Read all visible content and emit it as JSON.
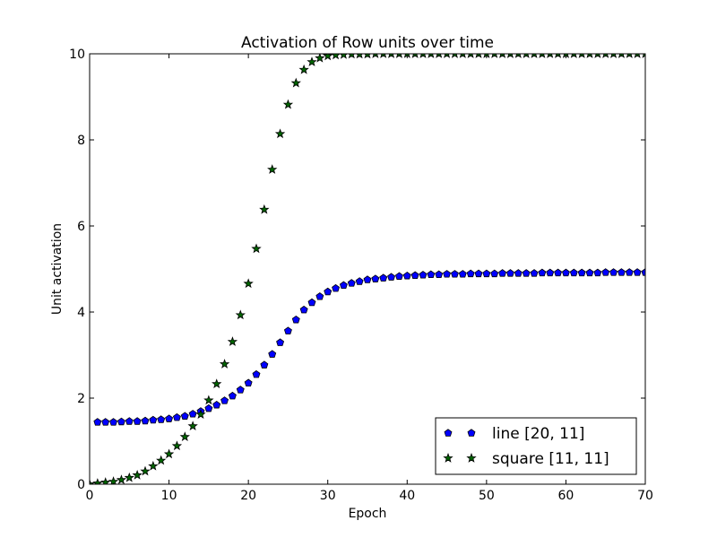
{
  "chart_data": {
    "type": "scatter",
    "title": "Activation of Row units over time",
    "xlabel": "Epoch",
    "ylabel": "Unit activation",
    "xlim": [
      0,
      70
    ],
    "ylim": [
      0,
      10
    ],
    "xticks": [
      "0",
      "10",
      "20",
      "30",
      "40",
      "50",
      "60",
      "70"
    ],
    "yticks": [
      "0",
      "2",
      "4",
      "6",
      "8",
      "10"
    ],
    "grid": false,
    "legend_position": "bottom-right",
    "series": [
      {
        "name": "line [20, 11]",
        "marker": "pentagon",
        "color": "#0000ff",
        "x": [
          1,
          2,
          3,
          4,
          5,
          6,
          7,
          8,
          9,
          10,
          11,
          12,
          13,
          14,
          15,
          16,
          17,
          18,
          19,
          20,
          21,
          22,
          23,
          24,
          25,
          26,
          27,
          28,
          29,
          30,
          31,
          32,
          33,
          34,
          35,
          36,
          37,
          38,
          39,
          40,
          41,
          42,
          43,
          44,
          45,
          46,
          47,
          48,
          49,
          50,
          51,
          52,
          53,
          54,
          55,
          56,
          57,
          58,
          59,
          60,
          61,
          62,
          63,
          64,
          65,
          66,
          67,
          68,
          69,
          70
        ],
        "y": [
          1.44,
          1.44,
          1.44,
          1.45,
          1.46,
          1.46,
          1.47,
          1.49,
          1.5,
          1.52,
          1.55,
          1.58,
          1.63,
          1.69,
          1.76,
          1.84,
          1.94,
          2.05,
          2.19,
          2.35,
          2.55,
          2.77,
          3.02,
          3.29,
          3.56,
          3.82,
          4.05,
          4.22,
          4.36,
          4.47,
          4.55,
          4.62,
          4.67,
          4.71,
          4.75,
          4.77,
          4.79,
          4.81,
          4.83,
          4.84,
          4.85,
          4.86,
          4.87,
          4.87,
          4.88,
          4.88,
          4.88,
          4.89,
          4.89,
          4.89,
          4.89,
          4.9,
          4.9,
          4.9,
          4.9,
          4.9,
          4.91,
          4.91,
          4.91,
          4.91,
          4.91,
          4.91,
          4.91,
          4.91,
          4.92,
          4.92,
          4.92,
          4.92,
          4.92,
          4.92
        ]
      },
      {
        "name": "square [11, 11]",
        "marker": "star",
        "color": "#006400",
        "x": [
          0,
          1,
          2,
          3,
          4,
          5,
          6,
          7,
          8,
          9,
          10,
          11,
          12,
          13,
          14,
          15,
          16,
          17,
          18,
          19,
          20,
          21,
          22,
          23,
          24,
          25,
          26,
          27,
          28,
          29,
          30,
          31,
          32,
          33,
          34,
          35,
          36,
          37,
          38,
          39,
          40,
          41,
          42,
          43,
          44,
          45,
          46,
          47,
          48,
          49,
          50,
          51,
          52,
          53,
          54,
          55,
          56,
          57,
          58,
          59,
          60,
          61,
          62,
          63,
          64,
          65,
          66,
          67,
          68,
          69,
          70
        ],
        "y": [
          0.0,
          0.02,
          0.04,
          0.06,
          0.1,
          0.15,
          0.21,
          0.3,
          0.42,
          0.55,
          0.7,
          0.89,
          1.1,
          1.35,
          1.62,
          1.95,
          2.33,
          2.79,
          3.31,
          3.93,
          4.66,
          5.47,
          6.38,
          7.31,
          8.14,
          8.82,
          9.32,
          9.63,
          9.81,
          9.9,
          9.95,
          9.97,
          9.98,
          9.99,
          9.99,
          9.99,
          10.0,
          10.0,
          10.0,
          10.0,
          10.0,
          10.0,
          10.0,
          10.0,
          10.0,
          10.0,
          10.0,
          10.0,
          10.0,
          10.0,
          10.0,
          10.0,
          10.0,
          10.0,
          10.0,
          10.0,
          10.0,
          10.0,
          10.0,
          10.0,
          10.0,
          10.0,
          10.0,
          10.0,
          10.0,
          10.0,
          10.0,
          10.0,
          10.0,
          10.0,
          10.0
        ]
      }
    ]
  }
}
